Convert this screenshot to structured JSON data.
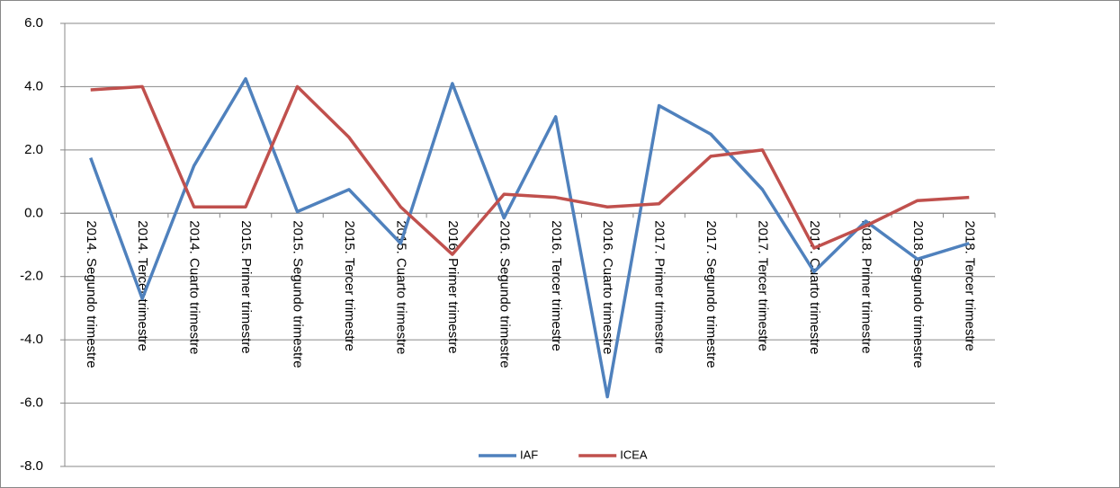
{
  "chart_data": {
    "type": "line",
    "categories": [
      "2014. Segundo trimestre",
      "2014. Tercer trimestre",
      "2014. Cuarto trimestre",
      "2015. Primer trimestre",
      "2015. Segundo trimestre",
      "2015. Tercer trimestre",
      "2015. Cuarto trimestre",
      "2016. Primer trimestre",
      "2016. Segundo trimestre",
      "2016. Tercer trimestre",
      "2016. Cuarto trimestre",
      "2017. Primer trimestre",
      "2017. Segundo trimestre",
      "2017. Tercer trimestre",
      "2017. Cuarto trimestre",
      "2018. Primer trimestre",
      "2018. Segundo trimestre",
      "2018. Tercer trimestre"
    ],
    "series": [
      {
        "name": "IAF",
        "color": "#4f81bd",
        "values": [
          1.75,
          -2.7,
          1.5,
          4.25,
          0.05,
          0.75,
          -0.95,
          4.1,
          -0.15,
          3.05,
          -5.8,
          3.4,
          2.5,
          0.75,
          -1.85,
          -0.25,
          -1.45,
          -0.95
        ]
      },
      {
        "name": "ICEA",
        "color": "#c0504d",
        "values": [
          3.9,
          4.0,
          0.2,
          0.2,
          4.0,
          2.4,
          0.2,
          -1.3,
          0.6,
          0.5,
          0.2,
          0.3,
          1.8,
          2.0,
          -1.1,
          -0.4,
          0.4,
          0.5
        ]
      }
    ],
    "ylim": [
      -8,
      6
    ],
    "yticks": [
      {
        "value": -8,
        "label": "-8.0"
      },
      {
        "value": -6,
        "label": "-6.0"
      },
      {
        "value": -4,
        "label": "-4.0"
      },
      {
        "value": -2,
        "label": "-2.0"
      },
      {
        "value": 0,
        "label": "0.0"
      },
      {
        "value": 2,
        "label": "2.0"
      },
      {
        "value": 4,
        "label": "4.0"
      },
      {
        "value": 6,
        "label": "6.0"
      }
    ],
    "grid": true,
    "legend": "bottom"
  }
}
